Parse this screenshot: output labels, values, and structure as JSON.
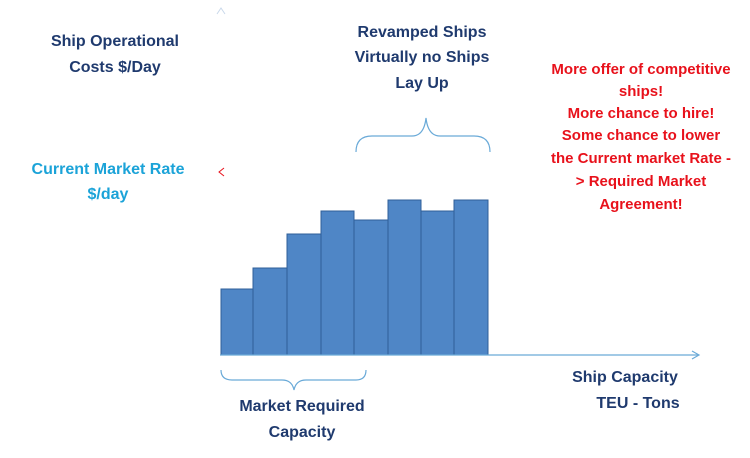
{
  "y_axis_label": [
    "Ship Operational",
    "Costs    $/Day"
  ],
  "market_rate_label": [
    "Current Market Rate",
    "$/day"
  ],
  "top_annotation": [
    "Revamped Ships",
    "Virtually no Ships",
    "Lay Up"
  ],
  "right_annotation": [
    "More offer of competitive",
    "ships!",
    "More chance to hire!",
    "Some chance to lower",
    "the Current market Rate -",
    "> Required Market",
    "Agreement!"
  ],
  "bottom_annotation": [
    "Market Required",
    "Capacity"
  ],
  "x_axis_label": [
    "Ship Capacity",
    "TEU - Tons"
  ]
}
